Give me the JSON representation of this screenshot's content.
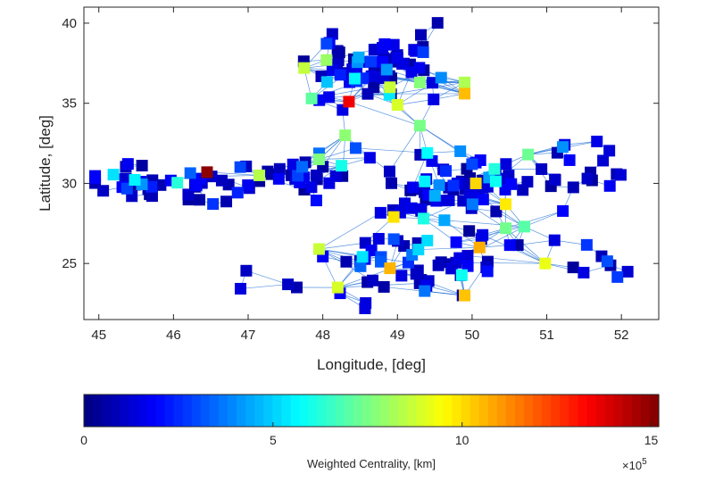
{
  "chart_data": {
    "type": "scatter",
    "title": "",
    "xlabel": "Longitude, [deg]",
    "ylabel": "Latitude, [deg]",
    "xlim": [
      44.8,
      52.5
    ],
    "ylim": [
      21.5,
      41
    ],
    "xticks": [
      45,
      46,
      47,
      48,
      49,
      50,
      51,
      52
    ],
    "yticks": [
      25,
      30,
      35,
      40
    ],
    "grid": false,
    "legend": "none",
    "marker": "square",
    "edge_color": "#1f6fd6",
    "edge_style": "thin straight lines connecting nearby nodes",
    "highlight_nodes": [
      {
        "x": 48.35,
        "y": 35.1,
        "value": 13.5
      },
      {
        "x": 46.45,
        "y": 30.7,
        "value": 15.0
      },
      {
        "x": 49.9,
        "y": 35.6,
        "value": 10.5
      },
      {
        "x": 50.45,
        "y": 28.7,
        "value": 9.8
      },
      {
        "x": 50.05,
        "y": 30.0,
        "value": 10.1
      },
      {
        "x": 48.9,
        "y": 24.7,
        "value": 10.6
      },
      {
        "x": 49.9,
        "y": 23.0,
        "value": 10.4
      },
      {
        "x": 50.1,
        "y": 26.0,
        "value": 10.7
      },
      {
        "x": 48.95,
        "y": 27.9,
        "value": 9.9
      },
      {
        "x": 50.98,
        "y": 25.0,
        "value": 9.2
      },
      {
        "x": 48.3,
        "y": 33.0,
        "value": 7.8
      },
      {
        "x": 49.9,
        "y": 36.3,
        "value": 8.3
      },
      {
        "x": 49.3,
        "y": 36.3,
        "value": 7.7
      },
      {
        "x": 47.95,
        "y": 31.5,
        "value": 7.6
      },
      {
        "x": 47.15,
        "y": 30.5,
        "value": 8.4
      },
      {
        "x": 48.05,
        "y": 37.7,
        "value": 8.0
      },
      {
        "x": 47.75,
        "y": 37.2,
        "value": 8.6
      },
      {
        "x": 48.9,
        "y": 36.0,
        "value": 8.7
      },
      {
        "x": 49.0,
        "y": 34.9,
        "value": 8.9
      },
      {
        "x": 49.3,
        "y": 33.6,
        "value": 7.5
      },
      {
        "x": 47.85,
        "y": 35.3,
        "value": 7.1
      },
      {
        "x": 50.75,
        "y": 31.8,
        "value": 7.3
      },
      {
        "x": 50.45,
        "y": 27.2,
        "value": 7.4
      },
      {
        "x": 50.7,
        "y": 27.3,
        "value": 7.0
      },
      {
        "x": 47.95,
        "y": 25.9,
        "value": 8.7
      },
      {
        "x": 48.2,
        "y": 23.5,
        "value": 8.9
      },
      {
        "x": 49.35,
        "y": 27.8,
        "value": 6.1
      },
      {
        "x": 50.3,
        "y": 30.9,
        "value": 6.2
      },
      {
        "x": 49.4,
        "y": 31.9,
        "value": 5.7
      },
      {
        "x": 48.25,
        "y": 31.1,
        "value": 6.0
      }
    ]
  },
  "colorbar": {
    "label": "Weighted Centrality, [km]",
    "ticks": [
      "0",
      "5",
      "10",
      "15"
    ],
    "tick_values": [
      0,
      5,
      10,
      15
    ],
    "range": [
      0,
      15.2
    ],
    "multiplier": "×10",
    "exponent": "5",
    "colormap": "jet"
  }
}
